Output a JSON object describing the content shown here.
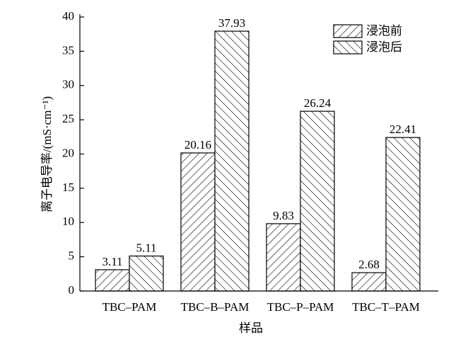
{
  "chart_data": {
    "type": "bar",
    "x_label": "样品",
    "y_label": "离子电导率/(mS·cm⁻¹)",
    "categories": [
      "TBC–PAM",
      "TBC–B–PAM",
      "TBC–P–PAM",
      "TBC–T–PAM"
    ],
    "series": [
      {
        "name": "浸泡前",
        "color": "#000000",
        "hatch": "/",
        "values": [
          3.11,
          20.16,
          9.83,
          2.68
        ]
      },
      {
        "name": "浸泡后",
        "color": "#000000",
        "hatch": "\\",
        "values": [
          5.11,
          37.93,
          26.24,
          22.41
        ]
      }
    ],
    "ylim": [
      0,
      40
    ],
    "yticks": [
      0,
      5,
      10,
      15,
      20,
      25,
      30,
      35,
      40
    ],
    "legend": "upper right"
  }
}
